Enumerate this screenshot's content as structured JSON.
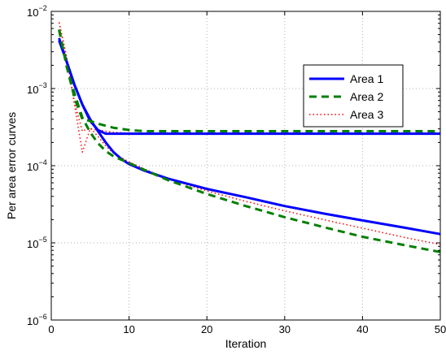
{
  "chart_data": {
    "type": "line",
    "title": "",
    "xlabel": "Iteration",
    "ylabel": "Per area error curves",
    "xlim": [
      0,
      50
    ],
    "ylim": [
      1e-06,
      0.01
    ],
    "yscale": "log",
    "grid": true,
    "legend_position": "top-right",
    "x_ticks": [
      0,
      10,
      20,
      30,
      40,
      50
    ],
    "y_ticks": [
      {
        "value": 1e-06,
        "mantissa": "10",
        "exponent": "−6"
      },
      {
        "value": 1e-05,
        "mantissa": "10",
        "exponent": "−5"
      },
      {
        "value": 0.0001,
        "mantissa": "10",
        "exponent": "−4"
      },
      {
        "value": 0.001,
        "mantissa": "10",
        "exponent": "−3"
      },
      {
        "value": 0.01,
        "mantissa": "10",
        "exponent": "−2"
      }
    ],
    "series": [
      {
        "name": "Area 1",
        "color": "#0000ff",
        "style": "solid",
        "line": "upper",
        "points": [
          [
            1,
            0.0042
          ],
          [
            2,
            0.0022
          ],
          [
            3,
            0.0011
          ],
          [
            4,
            0.00062
          ],
          [
            5,
            0.00038
          ],
          [
            6,
            0.00029
          ],
          [
            7,
            0.00026
          ],
          [
            8,
            0.00026
          ],
          [
            10,
            0.00026
          ],
          [
            15,
            0.00026
          ],
          [
            20,
            0.00026
          ],
          [
            30,
            0.00026
          ],
          [
            40,
            0.00026
          ],
          [
            50,
            0.00026
          ]
        ]
      },
      {
        "name": "Area 1",
        "color": "#0000ff",
        "style": "solid",
        "line": "lower",
        "points": [
          [
            1,
            0.0045
          ],
          [
            2,
            0.0022
          ],
          [
            3,
            0.0011
          ],
          [
            4,
            0.00062
          ],
          [
            5,
            0.0004
          ],
          [
            6,
            0.00028
          ],
          [
            7,
            0.0002
          ],
          [
            8,
            0.00015
          ],
          [
            9,
            0.000122
          ],
          [
            10,
            0.000105
          ],
          [
            12,
            8.6e-05
          ],
          [
            15,
            6.8e-05
          ],
          [
            20,
            5e-05
          ],
          [
            25,
            3.9e-05
          ],
          [
            30,
            3e-05
          ],
          [
            35,
            2.4e-05
          ],
          [
            40,
            1.95e-05
          ],
          [
            45,
            1.6e-05
          ],
          [
            50,
            1.3e-05
          ]
        ]
      },
      {
        "name": "Area 2",
        "color": "#007f00",
        "style": "dashed",
        "line": "upper",
        "points": [
          [
            1,
            0.0058
          ],
          [
            2,
            0.0019
          ],
          [
            3,
            0.00075
          ],
          [
            4,
            0.0004
          ],
          [
            5,
            0.00038
          ],
          [
            6,
            0.00035
          ],
          [
            8,
            0.00031
          ],
          [
            10,
            0.00029
          ],
          [
            12,
            0.00028
          ],
          [
            15,
            0.00028
          ],
          [
            20,
            0.00028
          ],
          [
            30,
            0.00028
          ],
          [
            40,
            0.00028
          ],
          [
            50,
            0.00028
          ]
        ]
      },
      {
        "name": "Area 2",
        "color": "#007f00",
        "style": "dashed",
        "line": "lower",
        "points": [
          [
            1,
            0.0058
          ],
          [
            2,
            0.0019
          ],
          [
            3,
            0.00085
          ],
          [
            4,
            0.00042
          ],
          [
            5,
            0.00027
          ],
          [
            6,
            0.000195
          ],
          [
            7,
            0.000155
          ],
          [
            8,
            0.000132
          ],
          [
            10,
            0.000108
          ],
          [
            12,
            8.8e-05
          ],
          [
            15,
            6.5e-05
          ],
          [
            20,
            4.3e-05
          ],
          [
            25,
            3e-05
          ],
          [
            30,
            2.15e-05
          ],
          [
            35,
            1.6e-05
          ],
          [
            40,
            1.2e-05
          ],
          [
            45,
            9.5e-06
          ],
          [
            50,
            7.6e-06
          ]
        ]
      },
      {
        "name": "Area 3",
        "color": "#ff0000",
        "style": "dotted",
        "line": "upper",
        "points": [
          [
            1,
            0.0072
          ],
          [
            2,
            0.0025
          ],
          [
            3,
            0.0006
          ],
          [
            4,
            0.00015
          ],
          [
            5,
            0.0003
          ],
          [
            6,
            0.00029
          ],
          [
            8,
            0.00027
          ],
          [
            10,
            0.000265
          ],
          [
            15,
            0.000265
          ],
          [
            20,
            0.000265
          ],
          [
            30,
            0.000265
          ],
          [
            40,
            0.000265
          ],
          [
            50,
            0.000265
          ]
        ]
      },
      {
        "name": "Area 3",
        "color": "#ff0000",
        "style": "dotted",
        "line": "lower",
        "points": [
          [
            1,
            0.0072
          ],
          [
            2,
            0.0025
          ],
          [
            3,
            0.00065
          ],
          [
            4,
            0.00028
          ],
          [
            5,
            0.00031
          ],
          [
            6,
            0.00024
          ],
          [
            7,
            0.00018
          ],
          [
            8,
            0.000145
          ],
          [
            10,
            0.000112
          ],
          [
            12,
            9e-05
          ],
          [
            15,
            6.8e-05
          ],
          [
            20,
            4.7e-05
          ],
          [
            25,
            3.45e-05
          ],
          [
            30,
            2.6e-05
          ],
          [
            35,
            2e-05
          ],
          [
            40,
            1.55e-05
          ],
          [
            45,
            1.2e-05
          ],
          [
            50,
            9.5e-06
          ]
        ]
      }
    ]
  },
  "legend": {
    "entries": [
      {
        "label": "Area 1",
        "color": "#0000ff",
        "style": "solid"
      },
      {
        "label": "Area 2",
        "color": "#007f00",
        "style": "dashed"
      },
      {
        "label": "Area 3",
        "color": "#ff0000",
        "style": "dotted"
      }
    ]
  }
}
